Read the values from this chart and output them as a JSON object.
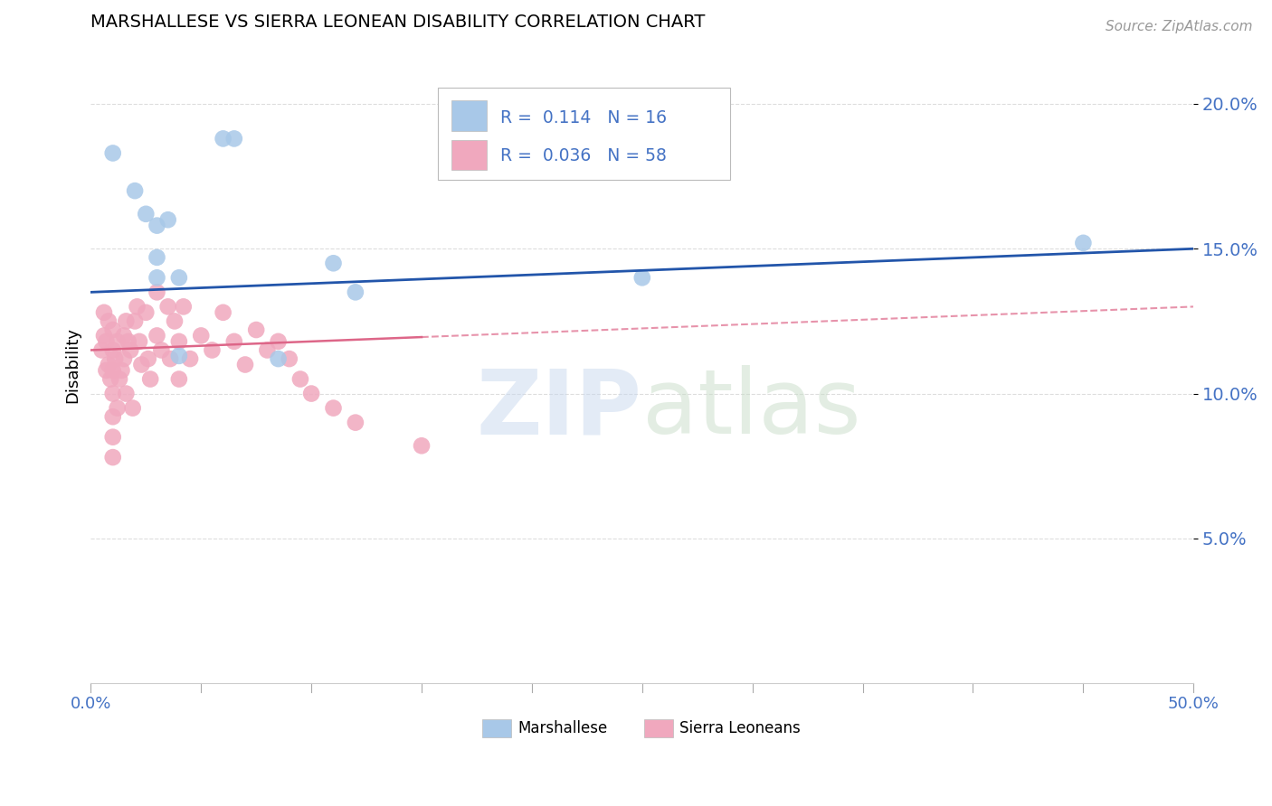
{
  "title": "MARSHALLESE VS SIERRA LEONEAN DISABILITY CORRELATION CHART",
  "source": "Source: ZipAtlas.com",
  "ylabel": "Disability",
  "xlim": [
    0,
    0.5
  ],
  "ylim": [
    0.0,
    0.22
  ],
  "yticks": [
    0.05,
    0.1,
    0.15,
    0.2
  ],
  "ytick_labels": [
    "5.0%",
    "10.0%",
    "15.0%",
    "20.0%"
  ],
  "marshallese_R": 0.114,
  "marshallese_N": 16,
  "sierra_R": 0.036,
  "sierra_N": 58,
  "blue_color": "#a8c8e8",
  "pink_color": "#f0a8be",
  "blue_line_color": "#2255aa",
  "pink_line_color": "#dd6688",
  "background_color": "#ffffff",
  "grid_color": "#dddddd",
  "marshallese_x": [
    0.01,
    0.02,
    0.06,
    0.065,
    0.025,
    0.03,
    0.03,
    0.035,
    0.04,
    0.11,
    0.25,
    0.04,
    0.03,
    0.45,
    0.12,
    0.085
  ],
  "marshallese_y": [
    0.183,
    0.17,
    0.188,
    0.188,
    0.162,
    0.158,
    0.147,
    0.16,
    0.14,
    0.145,
    0.14,
    0.113,
    0.14,
    0.152,
    0.135,
    0.112
  ],
  "sierra_x": [
    0.005,
    0.006,
    0.006,
    0.007,
    0.007,
    0.008,
    0.008,
    0.009,
    0.01,
    0.01,
    0.01,
    0.01,
    0.01,
    0.01,
    0.01,
    0.011,
    0.012,
    0.012,
    0.013,
    0.014,
    0.015,
    0.015,
    0.016,
    0.016,
    0.017,
    0.018,
    0.019,
    0.02,
    0.021,
    0.022,
    0.023,
    0.025,
    0.026,
    0.027,
    0.03,
    0.03,
    0.032,
    0.035,
    0.036,
    0.038,
    0.04,
    0.04,
    0.042,
    0.045,
    0.05,
    0.055,
    0.06,
    0.065,
    0.07,
    0.075,
    0.08,
    0.085,
    0.09,
    0.095,
    0.1,
    0.11,
    0.12,
    0.15
  ],
  "sierra_y": [
    0.115,
    0.12,
    0.128,
    0.118,
    0.108,
    0.125,
    0.11,
    0.105,
    0.122,
    0.115,
    0.108,
    0.1,
    0.092,
    0.085,
    0.078,
    0.112,
    0.118,
    0.095,
    0.105,
    0.108,
    0.12,
    0.112,
    0.125,
    0.1,
    0.118,
    0.115,
    0.095,
    0.125,
    0.13,
    0.118,
    0.11,
    0.128,
    0.112,
    0.105,
    0.135,
    0.12,
    0.115,
    0.13,
    0.112,
    0.125,
    0.118,
    0.105,
    0.13,
    0.112,
    0.12,
    0.115,
    0.128,
    0.118,
    0.11,
    0.122,
    0.115,
    0.118,
    0.112,
    0.105,
    0.1,
    0.095,
    0.09,
    0.082
  ]
}
